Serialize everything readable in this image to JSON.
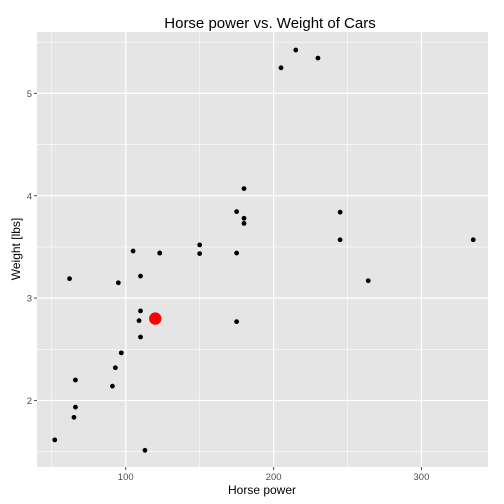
{
  "chart_data": {
    "type": "scatter",
    "title": "Horse power vs. Weight of Cars",
    "xlabel": "Horse power",
    "ylabel": "Weight [lbs]",
    "xlim": [
      40,
      345
    ],
    "ylim": [
      1.35,
      5.6
    ],
    "x_ticks": [
      100,
      200,
      300
    ],
    "x_tick_labels": [
      "100",
      "200",
      "300"
    ],
    "y_ticks": [
      2,
      3,
      4,
      5
    ],
    "y_tick_labels": [
      "2",
      "3",
      "4",
      "5"
    ],
    "grid": true,
    "panel_color": "#e5e5e5",
    "grid_color": "#ffffff",
    "point_color": "#000000",
    "highlight_color": "#ff0000",
    "series": [
      {
        "x": [
          110,
          110,
          93,
          110,
          175,
          105,
          245,
          62,
          95,
          123,
          123,
          180,
          180,
          180,
          205,
          215,
          230,
          66,
          52,
          65,
          97,
          150,
          150,
          245,
          175,
          66,
          91,
          113,
          264,
          175,
          335,
          109
        ],
        "y": [
          2.62,
          2.875,
          2.32,
          3.215,
          3.44,
          3.46,
          3.57,
          3.19,
          3.15,
          3.44,
          3.44,
          4.07,
          3.73,
          3.78,
          5.25,
          5.424,
          5.345,
          2.2,
          1.615,
          1.835,
          2.465,
          3.52,
          3.435,
          3.84,
          3.845,
          1.935,
          2.14,
          1.513,
          3.17,
          2.77,
          3.57,
          2.78
        ]
      }
    ],
    "highlight_point": {
      "x": 120,
      "y": 2.8
    }
  }
}
